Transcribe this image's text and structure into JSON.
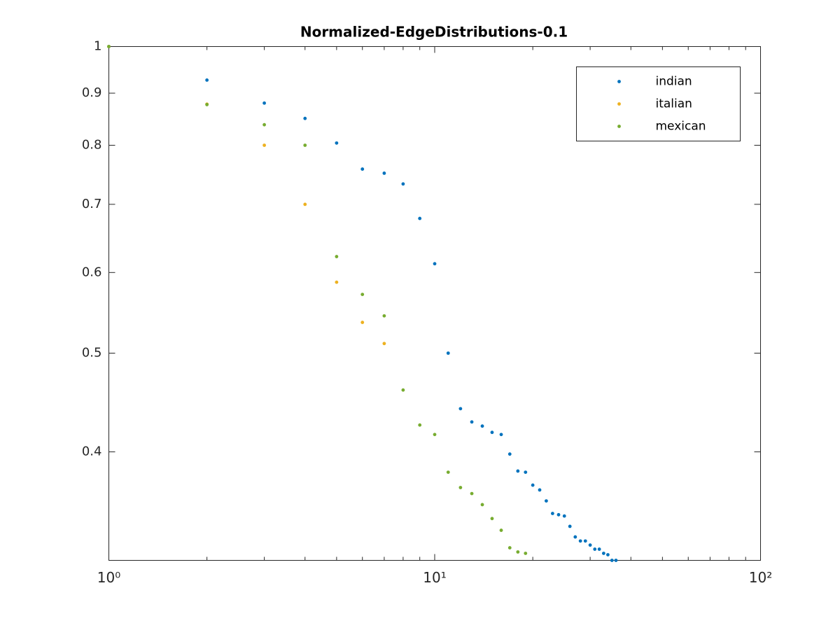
{
  "chart_data": {
    "type": "scatter",
    "title": "Normalized-EdgeDistributions-0.1",
    "xscale": "log",
    "yscale": "log",
    "xlim": [
      1,
      100
    ],
    "ylim": [
      0.313,
      1
    ],
    "xticks": [
      {
        "value": 1,
        "label": "10⁰"
      },
      {
        "value": 10,
        "label": "10¹"
      },
      {
        "value": 100,
        "label": "10²"
      }
    ],
    "yticks": [
      0.4,
      0.5,
      0.6,
      0.7,
      0.8,
      0.9,
      1
    ],
    "legend": "top-right",
    "series": [
      {
        "name": "indian",
        "color": "#0072bd",
        "x": [
          1,
          2,
          3,
          4,
          5,
          6,
          7,
          8,
          9,
          10,
          11,
          12,
          13,
          14,
          15,
          16,
          17,
          18,
          19,
          20,
          21,
          22,
          23,
          24,
          25,
          26,
          27,
          28,
          29,
          30,
          31,
          32,
          33,
          34,
          35,
          36
        ],
        "values": [
          1.0,
          0.927,
          0.88,
          0.85,
          0.804,
          0.758,
          0.751,
          0.733,
          0.678,
          0.612,
          0.5,
          0.441,
          0.428,
          0.424,
          0.418,
          0.416,
          0.398,
          0.383,
          0.382,
          0.371,
          0.367,
          0.358,
          0.348,
          0.347,
          0.346,
          0.338,
          0.33,
          0.327,
          0.327,
          0.324,
          0.321,
          0.321,
          0.318,
          0.317,
          0.313,
          0.313
        ]
      },
      {
        "name": "italian",
        "color": "#edb120",
        "x": [
          1,
          2,
          3,
          4,
          5,
          6,
          7
        ],
        "values": [
          1.0,
          0.878,
          0.8,
          0.7,
          0.587,
          0.536,
          0.511
        ]
      },
      {
        "name": "mexican",
        "color": "#77ac30",
        "x": [
          1,
          2,
          3,
          4,
          5,
          6,
          7,
          8,
          9,
          10,
          11,
          12,
          13,
          14,
          15,
          16,
          17,
          18,
          19
        ],
        "values": [
          1.0,
          0.877,
          0.838,
          0.8,
          0.622,
          0.571,
          0.544,
          0.46,
          0.425,
          0.416,
          0.382,
          0.369,
          0.364,
          0.355,
          0.344,
          0.335,
          0.322,
          0.319,
          0.318
        ]
      }
    ]
  }
}
